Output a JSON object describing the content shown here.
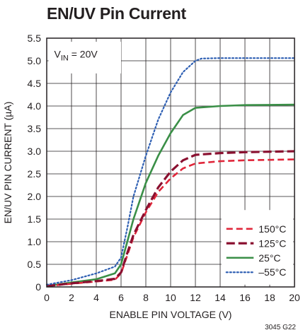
{
  "title": "EN/UV Pin Current",
  "figure_id": "3045 G22",
  "annotation": {
    "prefix": "V",
    "subscript": "IN",
    "suffix": " = 20V"
  },
  "colors": {
    "c150": "#e0263a",
    "c125": "#8a1030",
    "c25": "#3a8f47",
    "cm55": "#2e5fb3",
    "axis": "#231f20",
    "grid": "#231f20"
  },
  "chart_data": {
    "type": "line",
    "title": "EN/UV Pin Current",
    "xlabel": "ENABLE PIN VOLTAGE (V)",
    "ylabel": "EN/UV PIN CURRENT (µA)",
    "xlim": [
      0,
      20
    ],
    "ylim": [
      0,
      5.5
    ],
    "xticks": [
      "0",
      "2",
      "4",
      "6",
      "8",
      "10",
      "12",
      "14",
      "16",
      "18",
      "20"
    ],
    "yticks": [
      "0",
      "0.5",
      "1.0",
      "1.5",
      "2.0",
      "2.5",
      "3.0",
      "3.5",
      "4.0",
      "4.5",
      "5.0",
      "5.5"
    ],
    "grid": true,
    "legend_position": "bottom-right",
    "series": [
      {
        "name": "150°C",
        "style": "dashed",
        "x": [
          0,
          2,
          4,
          5.5,
          6,
          6.5,
          7,
          8,
          9,
          10,
          11,
          12,
          14,
          16,
          20
        ],
        "y": [
          0.02,
          0.07,
          0.12,
          0.16,
          0.3,
          0.7,
          1.1,
          1.65,
          2.1,
          2.4,
          2.62,
          2.73,
          2.78,
          2.8,
          2.82
        ]
      },
      {
        "name": "125°C",
        "style": "longdash",
        "x": [
          0,
          2,
          4,
          5.5,
          6,
          6.5,
          7,
          8,
          9,
          10,
          11,
          12,
          14,
          16,
          20
        ],
        "y": [
          0.02,
          0.08,
          0.13,
          0.18,
          0.32,
          0.75,
          1.15,
          1.7,
          2.2,
          2.55,
          2.8,
          2.92,
          2.96,
          2.98,
          3.0
        ]
      },
      {
        "name": "25°C",
        "style": "solid",
        "x": [
          0,
          2,
          4,
          5.5,
          6,
          6.5,
          7,
          8,
          9,
          10,
          11,
          12,
          14,
          16,
          20
        ],
        "y": [
          0.02,
          0.1,
          0.17,
          0.3,
          0.5,
          1.0,
          1.5,
          2.3,
          2.9,
          3.4,
          3.8,
          3.96,
          4.0,
          4.02,
          4.03
        ]
      },
      {
        "name": "–55°C",
        "style": "dotted",
        "x": [
          0,
          2,
          4,
          5.5,
          6,
          6.5,
          7,
          8,
          9,
          10,
          11,
          12,
          12.5,
          14,
          16,
          20
        ],
        "y": [
          0.05,
          0.15,
          0.3,
          0.45,
          0.65,
          1.3,
          2.0,
          2.9,
          3.7,
          4.3,
          4.75,
          5.0,
          5.05,
          5.06,
          5.06,
          5.06
        ]
      }
    ]
  }
}
